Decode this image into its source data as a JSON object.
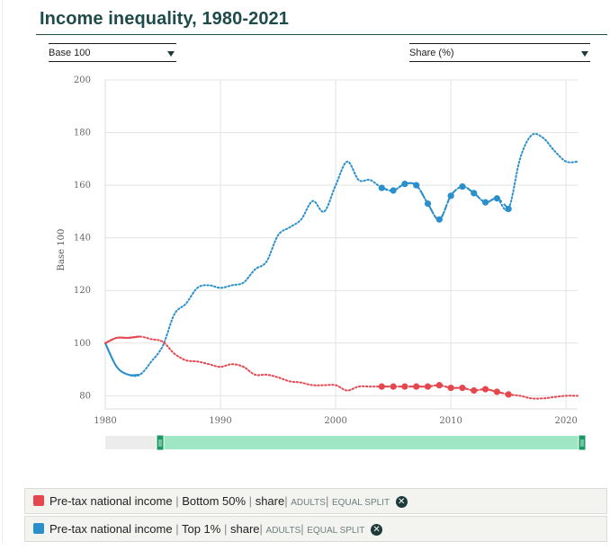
{
  "page": {
    "title": "Income inequality, 1980-2021"
  },
  "controls": {
    "left_select": {
      "value": "Base 100"
    },
    "right_select": {
      "value": "Share (%)"
    }
  },
  "legend": [
    {
      "color": "#e5474f",
      "indicator": "Pre-tax national income",
      "group": "Bottom 50%",
      "measure": "share",
      "population": "ADULTS",
      "split": "EQUAL SPLIT",
      "remove_icon": "close-circle-icon"
    },
    {
      "color": "#2a8fcb",
      "indicator": "Pre-tax national income",
      "group": "Top 1%",
      "measure": "share",
      "population": "ADULTS",
      "split": "EQUAL SPLIT",
      "remove_icon": "close-circle-icon"
    }
  ],
  "chart_data": {
    "type": "line",
    "title": "Income inequality, 1980-2021",
    "xlabel": "",
    "ylabel": "Base 100",
    "xlim": [
      1980,
      2021
    ],
    "ylim": [
      75,
      200
    ],
    "x_ticks": [
      1980,
      1990,
      2000,
      2010,
      2020
    ],
    "y_ticks": [
      80,
      100,
      120,
      140,
      160,
      180,
      200
    ],
    "grid": true,
    "highlight_range": [
      2004,
      2015
    ],
    "range_slider": {
      "start": 1985,
      "end": 2021
    },
    "series": [
      {
        "name": "Top 1%",
        "color": "#2a8fcb",
        "x": [
          1980,
          1981,
          1982,
          1983,
          1984,
          1985,
          1986,
          1987,
          1988,
          1989,
          1990,
          1991,
          1992,
          1993,
          1994,
          1995,
          1996,
          1997,
          1998,
          1999,
          2000,
          2001,
          2002,
          2003,
          2004,
          2005,
          2006,
          2007,
          2008,
          2009,
          2010,
          2011,
          2012,
          2013,
          2014,
          2015,
          2016,
          2017,
          2018,
          2019,
          2020,
          2021
        ],
        "values": [
          100,
          91,
          88,
          88,
          93,
          99,
          111,
          115,
          121,
          122,
          121,
          122,
          123,
          128,
          131,
          141,
          144,
          147,
          154,
          150,
          160,
          169,
          162,
          162,
          159,
          158,
          160.5,
          160,
          153,
          147,
          156,
          159.5,
          157,
          153.5,
          155,
          151,
          170,
          179,
          178,
          173,
          169,
          169
        ]
      },
      {
        "name": "Bottom 50%",
        "color": "#e5474f",
        "x": [
          1980,
          1981,
          1982,
          1983,
          1984,
          1985,
          1986,
          1987,
          1988,
          1989,
          1990,
          1991,
          1992,
          1993,
          1994,
          1995,
          1996,
          1997,
          1998,
          1999,
          2000,
          2001,
          2002,
          2003,
          2004,
          2005,
          2006,
          2007,
          2008,
          2009,
          2010,
          2011,
          2012,
          2013,
          2014,
          2015,
          2016,
          2017,
          2018,
          2019,
          2020,
          2021
        ],
        "values": [
          100,
          102,
          102,
          102.5,
          101.5,
          100.5,
          96,
          93.5,
          93,
          92,
          91,
          92,
          91,
          88,
          88,
          87,
          85.5,
          85,
          84,
          84,
          84,
          82,
          83.5,
          83.5,
          83.5,
          83.5,
          83.5,
          83.5,
          83.5,
          84,
          83,
          83,
          82,
          82.5,
          81.5,
          80.5,
          80,
          79,
          79,
          79.5,
          80,
          80
        ]
      }
    ]
  }
}
